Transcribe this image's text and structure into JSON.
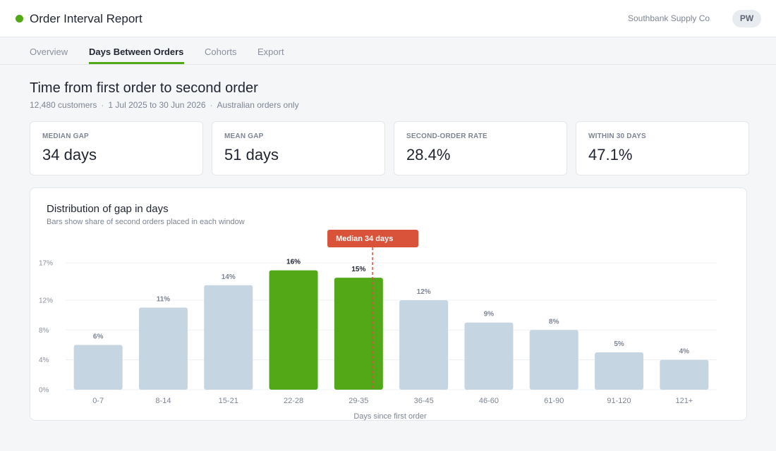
{
  "header": {
    "title": "Order Interval Report",
    "org": "Southbank Supply Co",
    "avatar_initials": "PW",
    "brand_color": "#52a816"
  },
  "tabs": [
    {
      "label": "Overview",
      "active": false
    },
    {
      "label": "Days Between Orders",
      "active": true
    },
    {
      "label": "Cohorts",
      "active": false
    },
    {
      "label": "Export",
      "active": false
    }
  ],
  "page": {
    "title": "Time from first order to second order",
    "meta": [
      "12,480 customers",
      "1 Jul 2025 to 30 Jun 2026",
      "Australian orders only"
    ]
  },
  "kpis": [
    {
      "label": "MEDIAN GAP",
      "value": "34 days"
    },
    {
      "label": "MEAN GAP",
      "value": "51 days"
    },
    {
      "label": "SECOND-ORDER RATE",
      "value": "28.4%"
    },
    {
      "label": "WITHIN 30 DAYS",
      "value": "47.1%"
    }
  ],
  "chart_data": {
    "type": "bar",
    "title": "Distribution of gap in days",
    "subtitle": "Bars show share of second orders placed in each window",
    "xlabel": "Days since first order",
    "ylabel": "",
    "categories": [
      "0-7",
      "8-14",
      "15-21",
      "22-28",
      "29-35",
      "36-45",
      "46-60",
      "61-90",
      "91-120",
      "121+"
    ],
    "values": [
      6,
      11,
      14,
      16,
      15,
      12,
      9,
      8,
      5,
      4
    ],
    "value_labels": [
      "6%",
      "11%",
      "14%",
      "16%",
      "15%",
      "12%",
      "9%",
      "8%",
      "5%",
      "4%"
    ],
    "highlighted": [
      false,
      false,
      false,
      true,
      true,
      false,
      false,
      false,
      false,
      false
    ],
    "y_ticks": [
      0,
      4,
      8,
      12,
      17
    ],
    "y_tick_labels": [
      "0%",
      "4%",
      "8%",
      "12%",
      "17%"
    ],
    "ylim": [
      0,
      17
    ],
    "grid": true,
    "colors": {
      "default": "#c5d5e2",
      "highlight": "#52a816",
      "median": "#d9533b"
    },
    "median": {
      "value": 34,
      "label": "Median 34 days"
    }
  }
}
